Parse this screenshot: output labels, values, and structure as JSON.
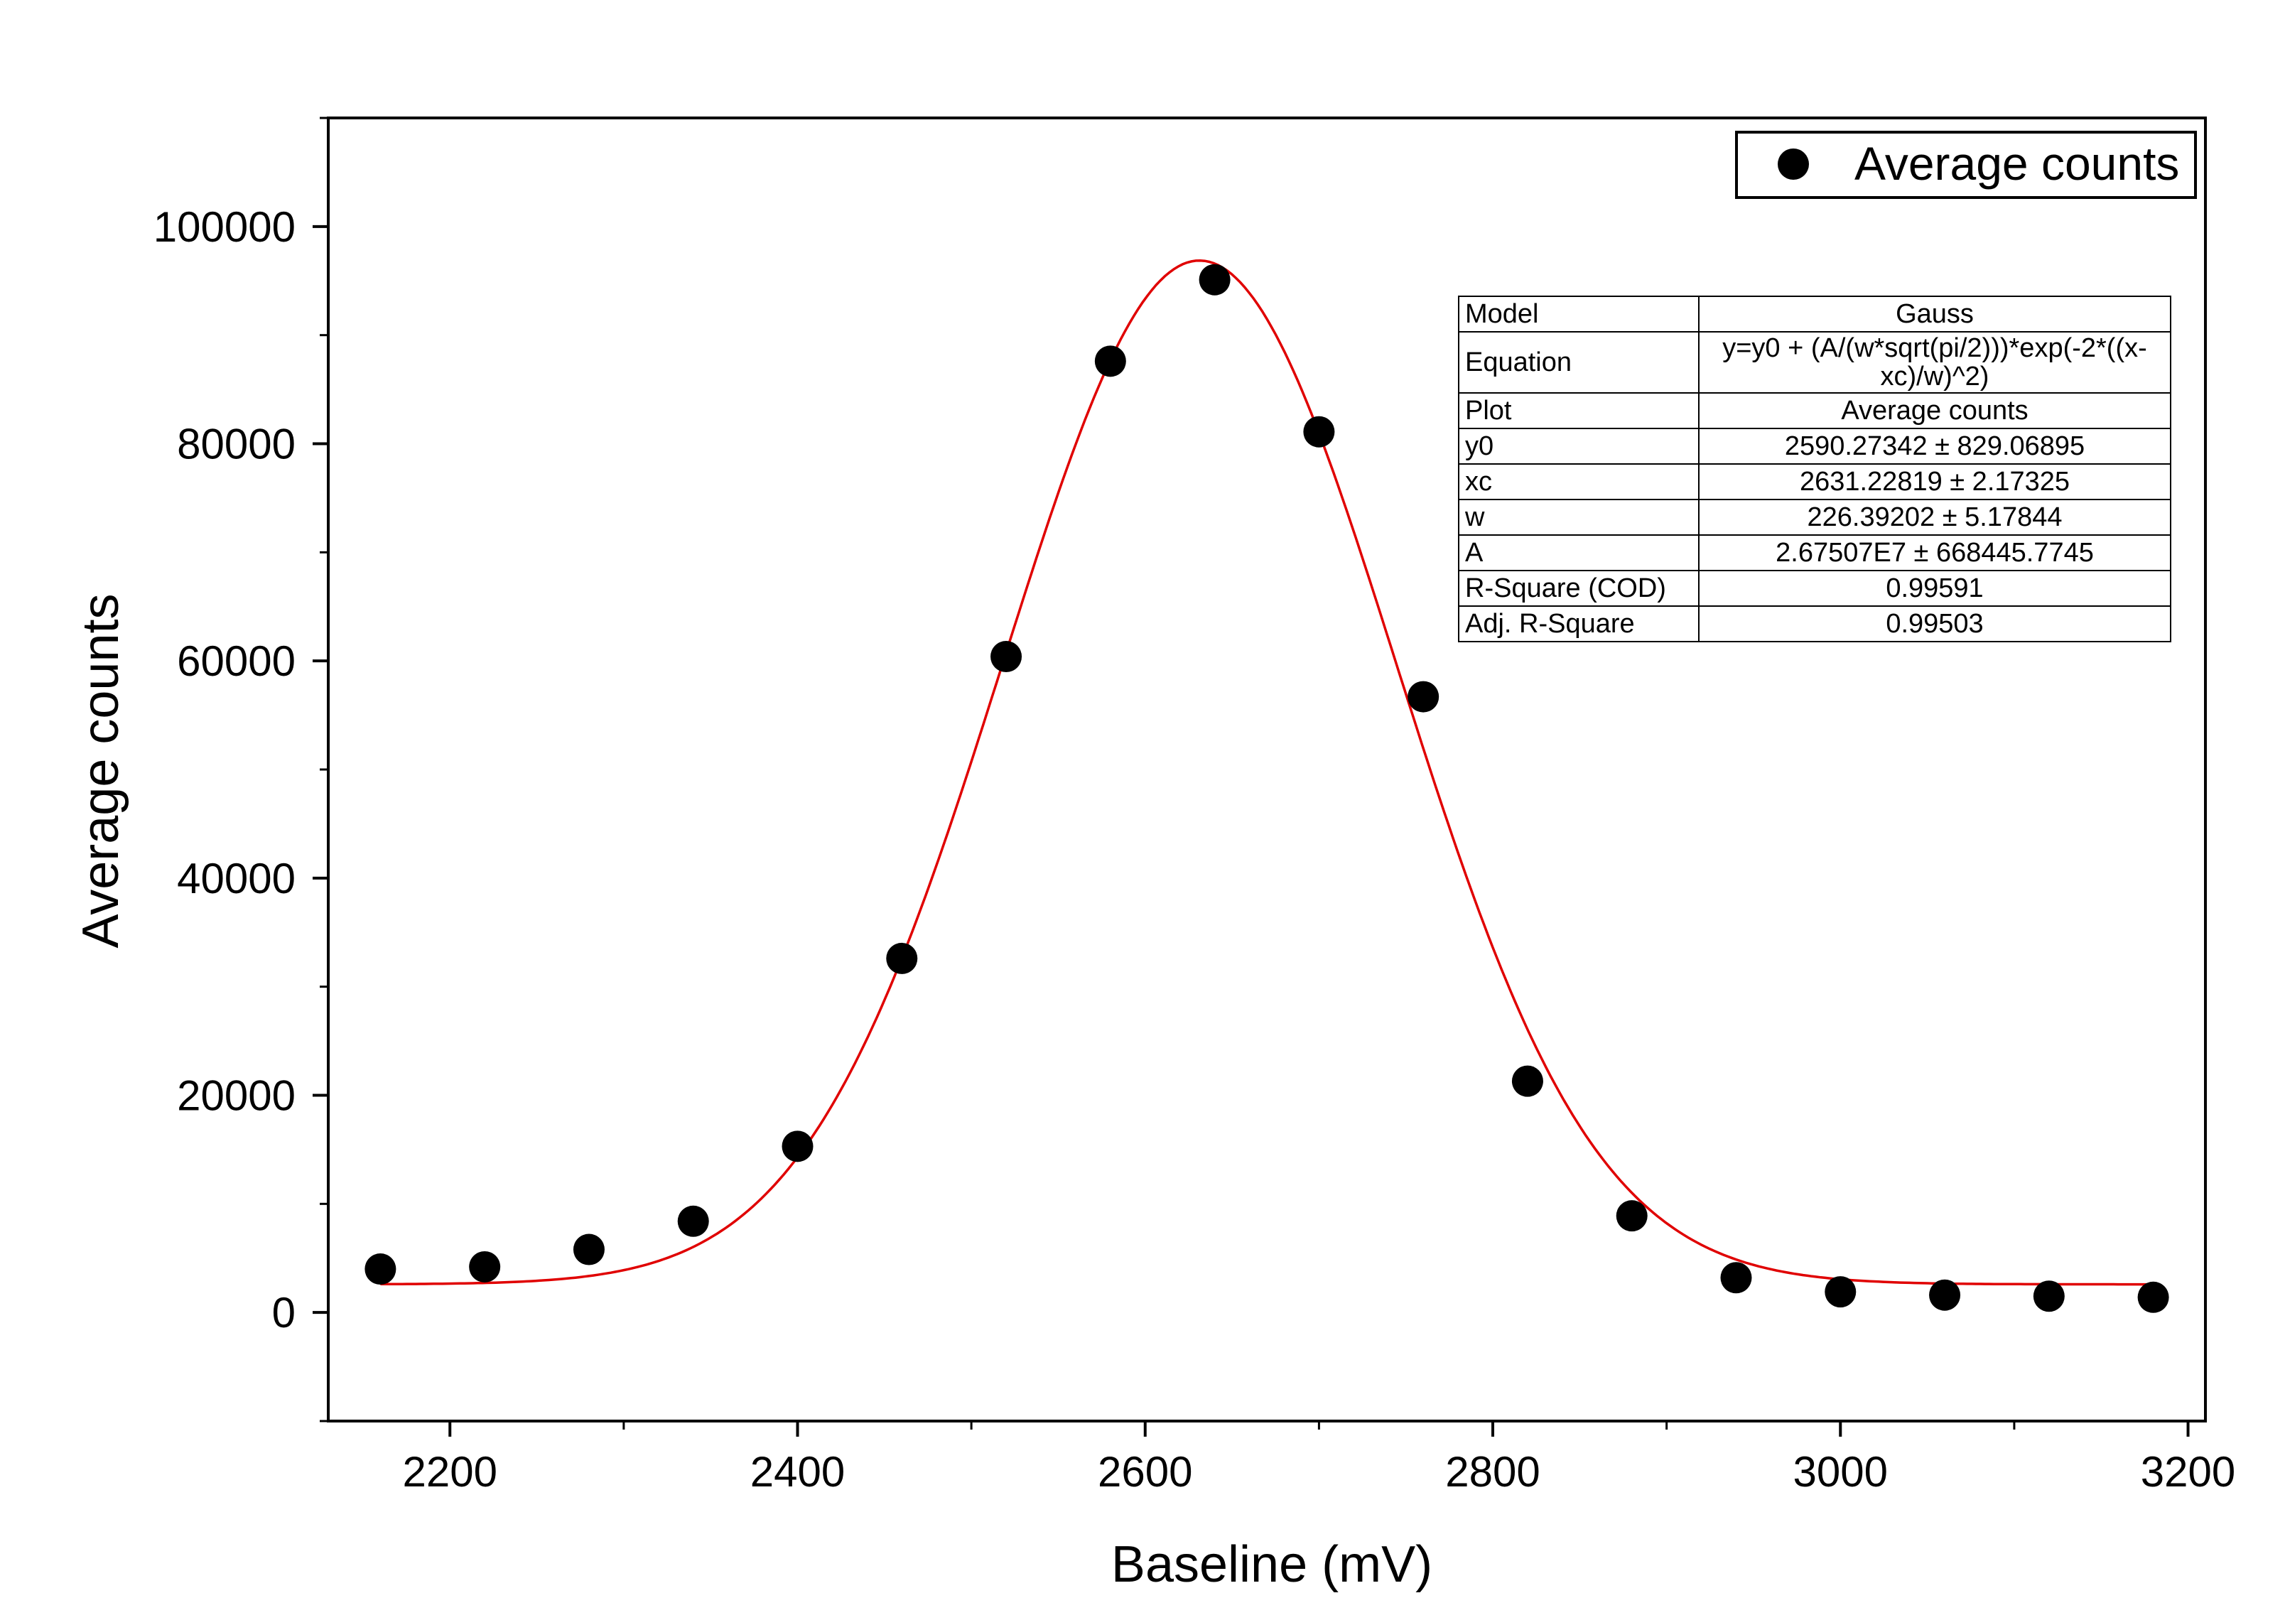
{
  "chart_data": {
    "type": "scatter",
    "xlabel": "Baseline (mV)",
    "ylabel": "Average counts",
    "xlim": [
      2130,
      3210
    ],
    "ylim": [
      -10000,
      110000
    ],
    "xticks": [
      2200,
      2400,
      2600,
      2800,
      3000,
      3200
    ],
    "yticks": [
      0,
      20000,
      40000,
      60000,
      80000,
      100000
    ],
    "grid": false,
    "legend_position": "top-right",
    "series": [
      {
        "name": "Average counts",
        "kind": "points",
        "color": "#000000",
        "x": [
          2160,
          2220,
          2280,
          2340,
          2400,
          2460,
          2520,
          2580,
          2640,
          2700,
          2760,
          2820,
          2880,
          2940,
          3000,
          3060,
          3120,
          3180
        ],
        "y": [
          4000,
          4200,
          5800,
          8400,
          15300,
          32600,
          60400,
          87600,
          95100,
          81100,
          56700,
          21300,
          8900,
          3200,
          1900,
          1600,
          1500,
          1400
        ]
      },
      {
        "kind": "fit",
        "color": "#e00000",
        "model": "gauss",
        "y0": 2590.27342,
        "xc": 2631.22819,
        "w": 226.39202,
        "A": 26750700,
        "x_range": [
          2160,
          3180
        ]
      }
    ],
    "fit_table": [
      {
        "key": "Model",
        "value": "Gauss"
      },
      {
        "key": "Equation",
        "value": "y=y0 + (A/(w*sqrt(pi/2)))*exp(-2*((x-xc)/w)^2)"
      },
      {
        "key": "Plot",
        "value": "Average counts"
      },
      {
        "key": "y0",
        "value": "2590.27342 ± 829.06895"
      },
      {
        "key": "xc",
        "value": "2631.22819 ± 2.17325"
      },
      {
        "key": "w",
        "value": "226.39202 ± 5.17844"
      },
      {
        "key": "A",
        "value": "2.67507E7 ± 668445.7745"
      },
      {
        "key": "R-Square (COD)",
        "value": "0.99591"
      },
      {
        "key": "Adj. R-Square",
        "value": "0.99503"
      }
    ]
  }
}
